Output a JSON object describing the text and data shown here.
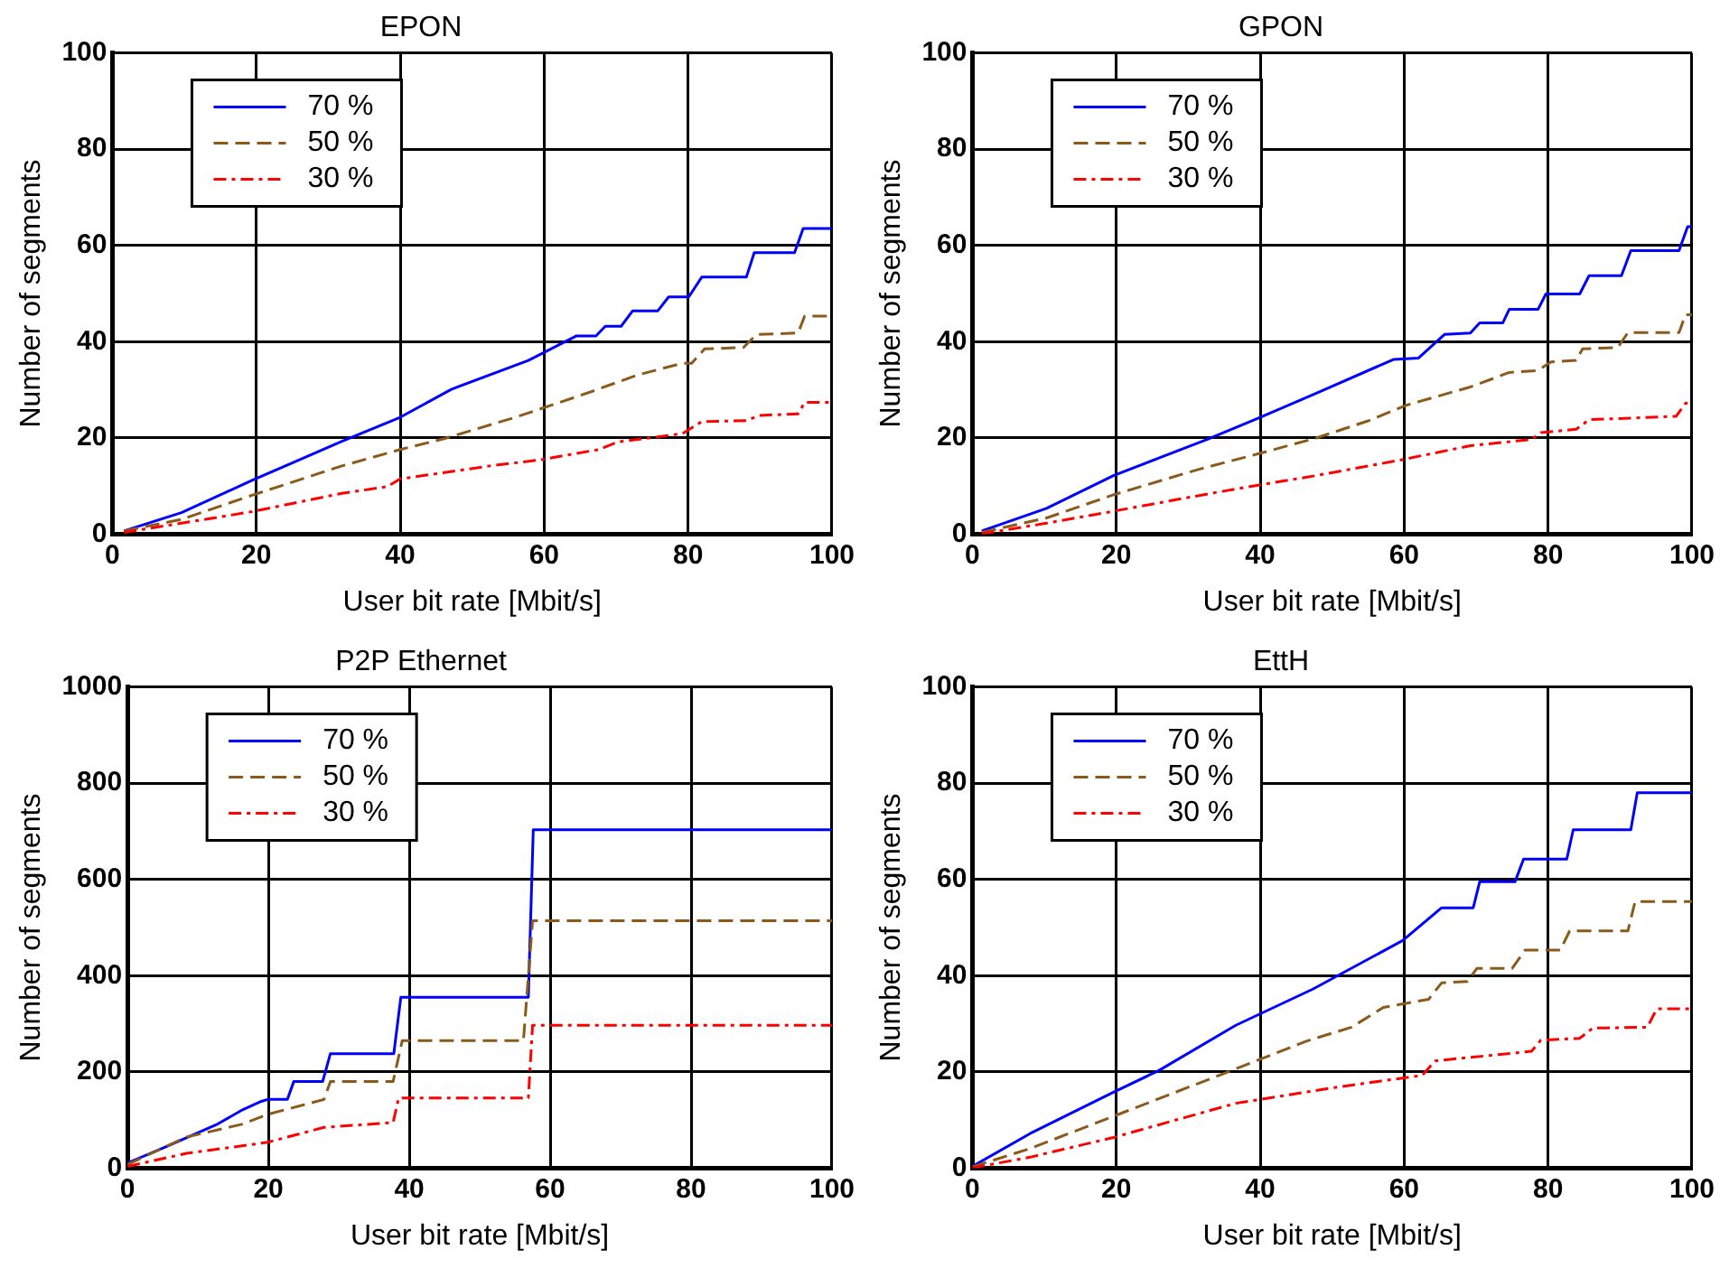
{
  "chart_data": [
    {
      "type": "line",
      "title": "EPON",
      "xlabel": "User bit rate [Mbit/s]",
      "ylabel": "Number of segments",
      "xlim": [
        0,
        100
      ],
      "xticks": [
        0,
        20,
        40,
        60,
        80,
        100
      ],
      "ylim": [
        0,
        100
      ],
      "yticks": [
        0,
        20,
        40,
        60,
        80,
        100
      ],
      "grid": true,
      "legend": "top left",
      "marker": "none",
      "series": [
        {
          "name": "70 %",
          "color": "#0000ff",
          "line_style": "solid",
          "x": [
            1.6,
            9.6,
            19.4,
            31.9,
            40,
            47.1,
            57.8,
            64.5,
            67.2,
            68.5,
            70.7,
            72.3,
            75.8,
            77.3,
            80.1,
            81.9,
            88.1,
            89.2,
            94.8,
            96,
            100
          ],
          "values": [
            0.7,
            4.5,
            11.2,
            19.3,
            24.3,
            30.1,
            36.1,
            41.2,
            41.2,
            43.2,
            43.2,
            46.4,
            46.4,
            49.3,
            49.3,
            53.4,
            53.4,
            58.5,
            58.5,
            63.5,
            63.5
          ]
        },
        {
          "name": "50 %",
          "color": "#8b5a1a",
          "line_style": "dashed",
          "x": [
            1.6,
            9.6,
            19.4,
            31.9,
            40,
            46.2,
            56,
            61.4,
            66.7,
            73,
            79.2,
            80.5,
            82.3,
            87.7,
            89.5,
            95.3,
            96.2,
            100
          ],
          "values": [
            0.7,
            3.1,
            8.1,
            14.2,
            17.6,
            19.9,
            24.3,
            27,
            29.7,
            33.1,
            35.5,
            35.5,
            38.5,
            38.8,
            41.5,
            41.8,
            45.3,
            45.3
          ]
        },
        {
          "name": "30 %",
          "color": "#ff0000",
          "line_style": "dotted",
          "x": [
            1.6,
            9.6,
            19.4,
            31.9,
            38.2,
            40,
            52.5,
            59.6,
            67.6,
            70.3,
            79.2,
            81.9,
            88.1,
            89.9,
            95.3,
            96.2,
            100
          ],
          "values": [
            0.4,
            2.3,
            4.7,
            8.5,
            9.9,
            11.5,
            14.2,
            15.5,
            17.6,
            19.2,
            20.9,
            23.4,
            23.6,
            24.7,
            25,
            27.4,
            27.4
          ]
        }
      ]
    },
    {
      "type": "line",
      "title": "GPON",
      "xlabel": "User bit rate [Mbit/s]",
      "ylabel": "Number of segments",
      "xlim": [
        0,
        100
      ],
      "xticks": [
        0,
        20,
        40,
        60,
        80,
        100
      ],
      "ylim": [
        0,
        100
      ],
      "yticks": [
        0,
        20,
        40,
        60,
        80,
        100
      ],
      "grid": true,
      "legend": "top left",
      "marker": "none",
      "series": [
        {
          "name": "70 %",
          "color": "#0000ff",
          "line_style": "solid",
          "x": [
            1.3,
            10.3,
            19.6,
            32.6,
            39.7,
            47.8,
            58.5,
            62,
            65.6,
            69.2,
            70.5,
            73.7,
            74.6,
            78.6,
            79.7,
            84.4,
            85.7,
            90.2,
            91.5,
            98.2,
            99.4,
            100
          ],
          "values": [
            0.7,
            5.4,
            12.2,
            19.7,
            24.1,
            29.3,
            36.3,
            36.6,
            41.5,
            41.8,
            43.9,
            43.9,
            46.7,
            46.7,
            49.9,
            49.9,
            53.7,
            53.7,
            58.9,
            58.9,
            63.9,
            63.9
          ]
        },
        {
          "name": "50 %",
          "color": "#8b5a1a",
          "line_style": "dashed",
          "x": [
            1.3,
            10.3,
            19.6,
            31.7,
            39.7,
            47.8,
            54.9,
            60.3,
            69.2,
            74.6,
            78.6,
            80.4,
            83.9,
            84.8,
            89.7,
            91.1,
            98.2,
            99.1,
            100
          ],
          "values": [
            0.4,
            3.4,
            8.2,
            13.6,
            16.7,
            20,
            23.5,
            26.8,
            30.6,
            33.6,
            34,
            35.8,
            36.1,
            38.5,
            38.8,
            41.9,
            41.9,
            45.6,
            45.6
          ]
        },
        {
          "name": "30 %",
          "color": "#ff0000",
          "line_style": "dotted",
          "x": [
            1.3,
            10.3,
            19.6,
            33.5,
            39.7,
            47.8,
            59.4,
            69.2,
            77.7,
            79,
            83.9,
            85.7,
            97.8,
            99.1,
            100
          ],
          "values": [
            0.1,
            2.3,
            4.8,
            8.6,
            10.2,
            12.2,
            15.4,
            18.4,
            19.7,
            21.1,
            21.8,
            23.8,
            24.5,
            27.2,
            27.2
          ]
        }
      ]
    },
    {
      "type": "line",
      "title": "P2P Ethernet",
      "xlabel": "User bit rate [Mbit/s]",
      "ylabel": "Number of segments",
      "xlim": [
        0,
        100
      ],
      "xticks": [
        0,
        20,
        40,
        60,
        80,
        100
      ],
      "ylim": [
        0,
        1000
      ],
      "yticks": [
        0,
        200,
        400,
        600,
        800,
        1000
      ],
      "grid": true,
      "legend": "top left",
      "marker": "none",
      "series": [
        {
          "name": "70 %",
          "color": "#0000ff",
          "line_style": "solid",
          "x": [
            0,
            4.9,
            12.8,
            16.4,
            19,
            19.9,
            22.7,
            23.6,
            27.7,
            28.8,
            37.8,
            38.8,
            56.9,
            57.6,
            100
          ],
          "values": [
            11,
            41,
            92,
            122,
            139,
            143,
            143,
            180,
            180,
            238,
            238,
            355,
            355,
            703,
            703
          ]
        },
        {
          "name": "50 %",
          "color": "#8b5a1a",
          "line_style": "dashed",
          "x": [
            0,
            8.4,
            16.4,
            19.9,
            27.9,
            28.8,
            37.7,
            39,
            56.2,
            57.5,
            100
          ],
          "values": [
            8,
            65,
            92,
            112,
            143,
            180,
            180,
            265,
            265,
            514,
            514
          ]
        },
        {
          "name": "30 %",
          "color": "#ff0000",
          "line_style": "dotted",
          "x": [
            0,
            8.4,
            19.9,
            27.9,
            37.7,
            38.5,
            56.9,
            57.5,
            100
          ],
          "values": [
            4,
            31,
            54,
            85,
            95,
            146,
            146,
            297,
            297
          ]
        }
      ]
    },
    {
      "type": "line",
      "title": "EttH",
      "xlabel": "User bit rate [Mbit/s]",
      "ylabel": "Number of segments",
      "xlim": [
        0,
        100
      ],
      "xticks": [
        0,
        20,
        40,
        60,
        80,
        100
      ],
      "ylim": [
        0,
        100
      ],
      "yticks": [
        0,
        20,
        40,
        60,
        80,
        100
      ],
      "grid": true,
      "legend": "top left",
      "marker": "none",
      "series": [
        {
          "name": "70 %",
          "color": "#0000ff",
          "line_style": "solid",
          "x": [
            0,
            8,
            19.6,
            25.9,
            36.6,
            47.3,
            59.8,
            65.2,
            69.6,
            70.5,
            75.4,
            76.6,
            82.6,
            83.5,
            91.5,
            92.4,
            100
          ],
          "values": [
            0.4,
            7.2,
            15.8,
            20.3,
            29.7,
            37.2,
            47.3,
            54.1,
            54.1,
            59.5,
            59.5,
            64.2,
            64.2,
            70.3,
            70.3,
            78,
            78
          ]
        },
        {
          "name": "50 %",
          "color": "#8b5a1a",
          "line_style": "dashed",
          "x": [
            0,
            8,
            19.6,
            34.8,
            46.4,
            52.7,
            57.1,
            63.4,
            65.2,
            68.8,
            70.1,
            75,
            76.8,
            81.7,
            83,
            91.1,
            92.1,
            100
          ],
          "values": [
            0.3,
            4.1,
            10.8,
            19.6,
            26.4,
            29.3,
            33.4,
            35.1,
            38.5,
            38.8,
            41.5,
            41.5,
            45.3,
            45.3,
            49.3,
            49.3,
            55.4,
            55.4
          ]
        },
        {
          "name": "30 %",
          "color": "#ff0000",
          "line_style": "dotted",
          "x": [
            0,
            8,
            19.6,
            36.6,
            50.9,
            62.5,
            64.3,
            77.7,
            79,
            84.4,
            86.2,
            93.8,
            95.1,
            100
          ],
          "values": [
            0.1,
            2.3,
            6.4,
            13.5,
            16.9,
            19.3,
            22.3,
            24.3,
            26.6,
            27,
            29.1,
            29.3,
            33.1,
            33.1
          ]
        }
      ]
    }
  ]
}
